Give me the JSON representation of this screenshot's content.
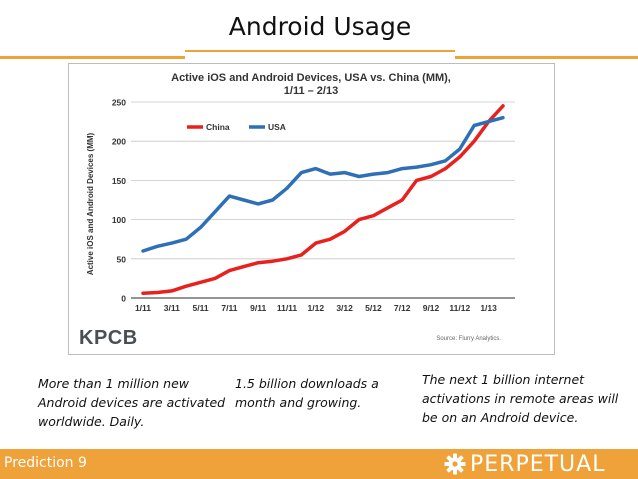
{
  "slide": {
    "title": "Android Usage",
    "footer_label": "Prediction 9",
    "brand_name": "PERPETUAL"
  },
  "captions": [
    "More than 1 million new Android devices are activated worldwide. Daily.",
    "1.5 billion downloads a month and growing.",
    "The next 1 billion internet activations in remote areas will be on an Android device."
  ],
  "chart_data": {
    "type": "line",
    "title": "Active iOS and Android Devices, USA vs. China (MM),",
    "subtitle": "1/11 – 2/13",
    "xlabel": "",
    "ylabel": "Active iOS and Android Devices (MM)",
    "ylim": [
      0,
      250
    ],
    "yticks": [
      0,
      50,
      100,
      150,
      200,
      250
    ],
    "categories": [
      "1/11",
      "2/11",
      "3/11",
      "4/11",
      "5/11",
      "6/11",
      "7/11",
      "8/11",
      "9/11",
      "10/11",
      "11/11",
      "12/11",
      "1/12",
      "2/12",
      "3/12",
      "4/12",
      "5/12",
      "6/12",
      "7/12",
      "8/12",
      "9/12",
      "10/12",
      "11/12",
      "12/12",
      "1/13",
      "2/13"
    ],
    "xtick_labels": [
      "1/11",
      "3/11",
      "5/11",
      "7/11",
      "9/11",
      "11/11",
      "1/12",
      "3/12",
      "5/12",
      "7/12",
      "9/12",
      "11/12",
      "1/13"
    ],
    "legend": "top-left",
    "grid": true,
    "source": "Source: Flurry Analytics.",
    "logo": "KPCB",
    "colors": {
      "China": "#e8201e",
      "USA": "#2f6fb5"
    },
    "series": [
      {
        "name": "China",
        "values": [
          6,
          7,
          9,
          15,
          20,
          25,
          35,
          40,
          45,
          47,
          50,
          55,
          70,
          75,
          85,
          100,
          105,
          115,
          125,
          150,
          155,
          165,
          180,
          200,
          225,
          245
        ]
      },
      {
        "name": "USA",
        "values": [
          60,
          66,
          70,
          75,
          90,
          110,
          130,
          125,
          120,
          125,
          140,
          160,
          165,
          158,
          160,
          155,
          158,
          160,
          165,
          167,
          170,
          175,
          190,
          220,
          225,
          230
        ]
      }
    ]
  }
}
